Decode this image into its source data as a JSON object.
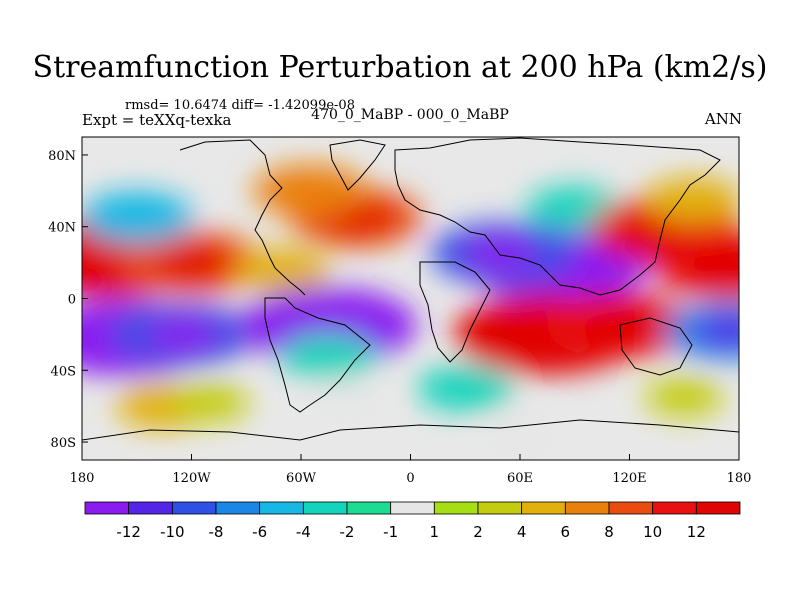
{
  "title": "Streamfunction Perturbation at 200 hPa (km2/s)",
  "stats": "rmsd= 10.6474 diff= -1.42099e-08",
  "experiment": "Expt = teXXq-texka",
  "period": "470_0_MaBP - 000_0_MaBP",
  "season": "ANN",
  "map": {
    "lat_ticks": [
      "80N",
      "40N",
      "0",
      "40S",
      "80S"
    ],
    "lon_ticks": [
      "180",
      "120W",
      "60W",
      "0",
      "60E",
      "120E",
      "180"
    ],
    "background_color": "#e8e8e8"
  },
  "colorbar": {
    "labels": [
      "-12",
      "-10",
      "-8",
      "-6",
      "-4",
      "-2",
      "-1",
      "1",
      "2",
      "4",
      "6",
      "8",
      "10",
      "12"
    ],
    "colors": [
      "#8a1cf0",
      "#5424e8",
      "#2e50e4",
      "#1a86e6",
      "#18b8e4",
      "#14d4bc",
      "#1cdc92",
      "#e6e6e6",
      "#a6de16",
      "#c4cc10",
      "#e2b00c",
      "#ea800c",
      "#ea4c10",
      "#e81010",
      "#e00404"
    ]
  },
  "chart_data": {
    "type": "heatmap",
    "title": "Streamfunction Perturbation at 200 hPa (km2/s)",
    "xlim": [
      -180,
      180
    ],
    "ylim": [
      -90,
      90
    ],
    "x_tick_labels": [
      "180",
      "120W",
      "60W",
      "0",
      "60E",
      "120E",
      "180"
    ],
    "y_tick_labels": [
      "80N",
      "40N",
      "0",
      "40S",
      "80S"
    ],
    "levels": [
      -12,
      -10,
      -8,
      -6,
      -4,
      -2,
      -1,
      1,
      2,
      4,
      6,
      8,
      10,
      12
    ],
    "centers": [
      {
        "lon": -165,
        "lat": 23,
        "value": 14
      },
      {
        "lon": -120,
        "lat": 20,
        "value": 9
      },
      {
        "lon": -70,
        "lat": 15,
        "value": 4
      },
      {
        "lon": -155,
        "lat": -22,
        "value": -13
      },
      {
        "lon": -125,
        "lat": -20,
        "value": -9
      },
      {
        "lon": -45,
        "lat": -15,
        "value": -13
      },
      {
        "lon": -45,
        "lat": -32,
        "value": -4
      },
      {
        "lon": 30,
        "lat": -50,
        "value": -4
      },
      {
        "lon": -35,
        "lat": -55,
        "value": -1
      },
      {
        "lon": 80,
        "lat": 20,
        "value": -14
      },
      {
        "lon": 50,
        "lat": 25,
        "value": -9
      },
      {
        "lon": 90,
        "lat": 50,
        "value": -4
      },
      {
        "lon": 140,
        "lat": 38,
        "value": 10
      },
      {
        "lon": 155,
        "lat": 55,
        "value": 4
      },
      {
        "lon": 75,
        "lat": -20,
        "value": 14
      },
      {
        "lon": 115,
        "lat": -15,
        "value": 10
      },
      {
        "lon": 175,
        "lat": -18,
        "value": -8
      },
      {
        "lon": 175,
        "lat": 18,
        "value": 10
      },
      {
        "lon": -30,
        "lat": 45,
        "value": 8
      },
      {
        "lon": -55,
        "lat": 60,
        "value": 6
      },
      {
        "lon": -150,
        "lat": 45,
        "value": -6
      },
      {
        "lon": -135,
        "lat": -60,
        "value": 4
      },
      {
        "lon": -110,
        "lat": -58,
        "value": 2
      },
      {
        "lon": 150,
        "lat": -55,
        "value": 2
      },
      {
        "lon": 60,
        "lat": -75,
        "value": -1
      }
    ]
  }
}
